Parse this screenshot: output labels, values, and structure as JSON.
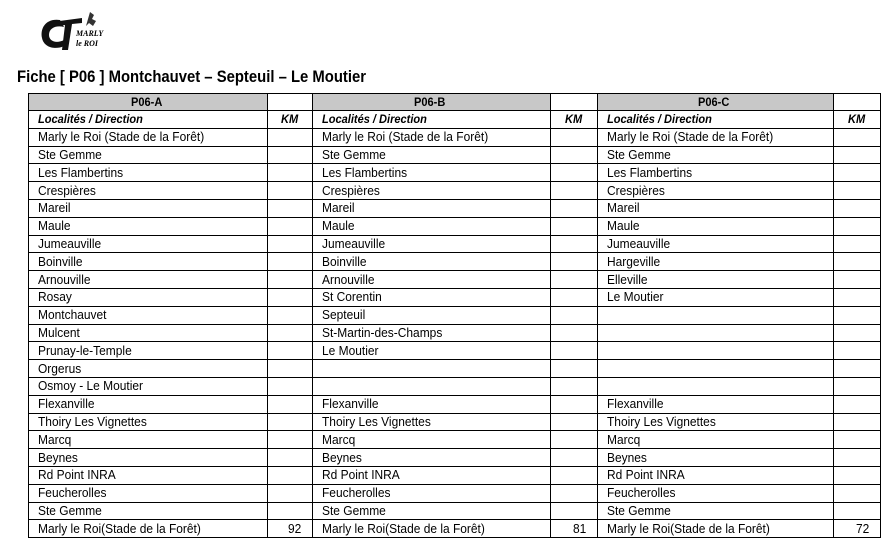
{
  "logo": {
    "text": "MARLY le ROI",
    "initials": "CT"
  },
  "title": "Fiche [ P06 ] Montchauvet – Septeuil – Le Moutier",
  "headers": {
    "col_label": "Localités / Direction",
    "km_label": "KM"
  },
  "routes": [
    {
      "name": "P06-A",
      "km": "92",
      "stops": [
        "Marly le Roi (Stade de la Forêt)",
        "Ste Gemme",
        "Les Flambertins",
        "Crespières",
        "Mareil",
        "Maule",
        "Jumeauville",
        "Boinville",
        "Arnouville",
        "Rosay",
        "Montchauvet",
        "Mulcent",
        "Prunay-le-Temple",
        "Orgerus",
        "Osmoy - Le Moutier",
        "Flexanville",
        "Thoiry Les Vignettes",
        "Marcq",
        "Beynes",
        "Rd Point INRA",
        "Feucherolles",
        "Ste Gemme",
        "Marly le Roi(Stade de la Forêt)"
      ]
    },
    {
      "name": "P06-B",
      "km": "81",
      "stops": [
        "Marly le Roi (Stade de la Forêt)",
        "Ste Gemme",
        "Les Flambertins",
        "Crespières",
        "Mareil",
        "Maule",
        "Jumeauville",
        "Boinville",
        "Arnouville",
        "St Corentin",
        "Septeuil",
        "St-Martin-des-Champs",
        "Le Moutier",
        "",
        "",
        "Flexanville",
        "Thoiry Les Vignettes",
        "Marcq",
        "Beynes",
        "Rd Point INRA",
        "Feucherolles",
        "Ste Gemme",
        "Marly le Roi(Stade de la Forêt)"
      ]
    },
    {
      "name": "P06-C",
      "km": "72",
      "stops": [
        "Marly le Roi (Stade de la Forêt)",
        "Ste Gemme",
        "Les Flambertins",
        "Crespières",
        "Mareil",
        "Maule",
        "Jumeauville",
        "Hargeville",
        "Elleville",
        "Le Moutier",
        "",
        "",
        "",
        "",
        "",
        "Flexanville",
        "Thoiry Les Vignettes",
        "Marcq",
        "Beynes",
        "Rd Point INRA",
        "Feucherolles",
        "Ste Gemme",
        "Marly le Roi(Stade de la Forêt)"
      ]
    }
  ]
}
